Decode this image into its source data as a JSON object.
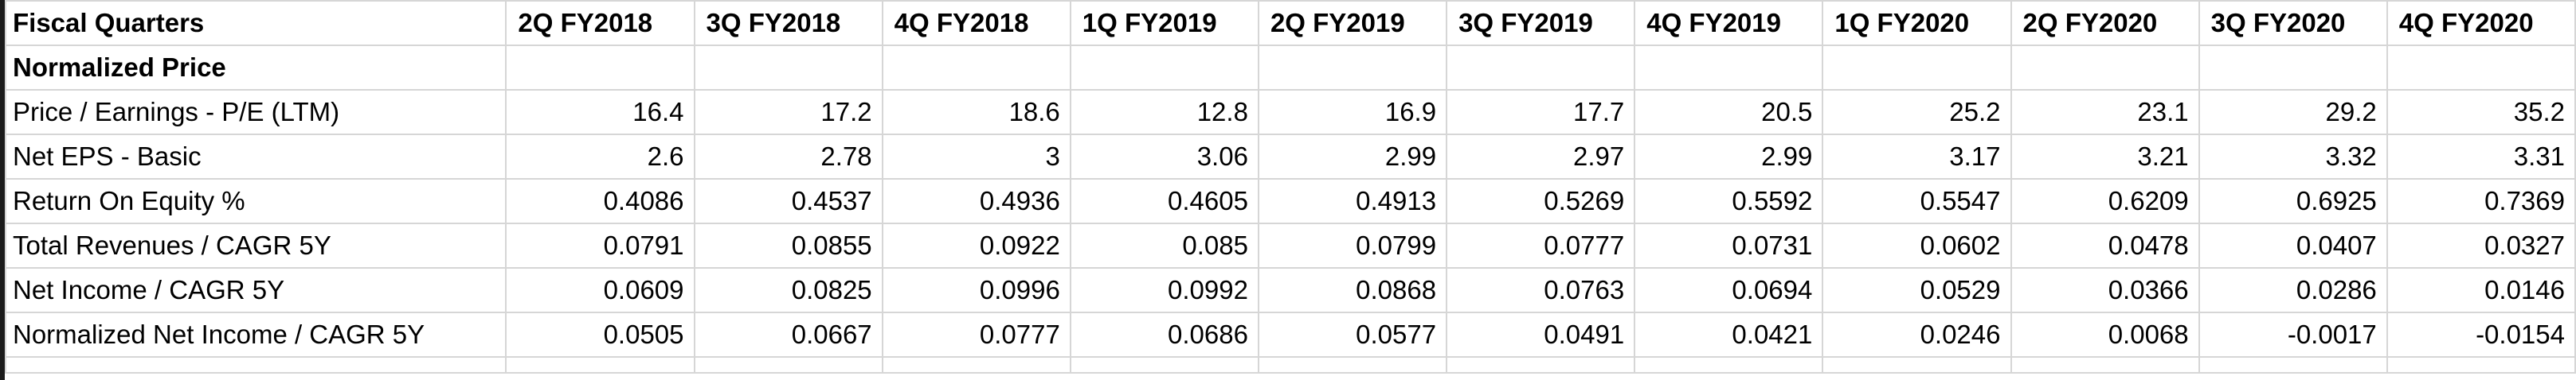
{
  "sheet": {
    "header_label": "Fiscal Quarters",
    "quarters": [
      "2Q FY2018",
      "3Q FY2018",
      "4Q FY2018",
      "1Q FY2019",
      "2Q FY2019",
      "3Q FY2019",
      "4Q FY2019",
      "1Q FY2020",
      "2Q FY2020",
      "3Q FY2020",
      "4Q FY2020"
    ],
    "section_label": "Normalized Price",
    "rows": [
      {
        "label": "Price / Earnings - P/E (LTM)",
        "values": [
          "16.4",
          "17.2",
          "18.6",
          "12.8",
          "16.9",
          "17.7",
          "20.5",
          "25.2",
          "23.1",
          "29.2",
          "35.2"
        ]
      },
      {
        "label": "Net EPS - Basic",
        "values": [
          "2.6",
          "2.78",
          "3",
          "3.06",
          "2.99",
          "2.97",
          "2.99",
          "3.17",
          "3.21",
          "3.32",
          "3.31"
        ]
      },
      {
        "label": "Return On Equity %",
        "values": [
          "0.4086",
          "0.4537",
          "0.4936",
          "0.4605",
          "0.4913",
          "0.5269",
          "0.5592",
          "0.5547",
          "0.6209",
          "0.6925",
          "0.7369"
        ]
      },
      {
        "label": "Total Revenues / CAGR 5Y",
        "values": [
          "0.0791",
          "0.0855",
          "0.0922",
          "0.085",
          "0.0799",
          "0.0777",
          "0.0731",
          "0.0602",
          "0.0478",
          "0.0407",
          "0.0327"
        ]
      },
      {
        "label": "Net Income / CAGR 5Y",
        "values": [
          "0.0609",
          "0.0825",
          "0.0996",
          "0.0992",
          "0.0868",
          "0.0763",
          "0.0694",
          "0.0529",
          "0.0366",
          "0.0286",
          "0.0146"
        ]
      },
      {
        "label": "Normalized Net Income / CAGR 5Y",
        "values": [
          "0.0505",
          "0.0667",
          "0.0777",
          "0.0686",
          "0.0577",
          "0.0491",
          "0.0421",
          "0.0246",
          "0.0068",
          "-0.0017",
          "-0.0154"
        ]
      }
    ]
  }
}
